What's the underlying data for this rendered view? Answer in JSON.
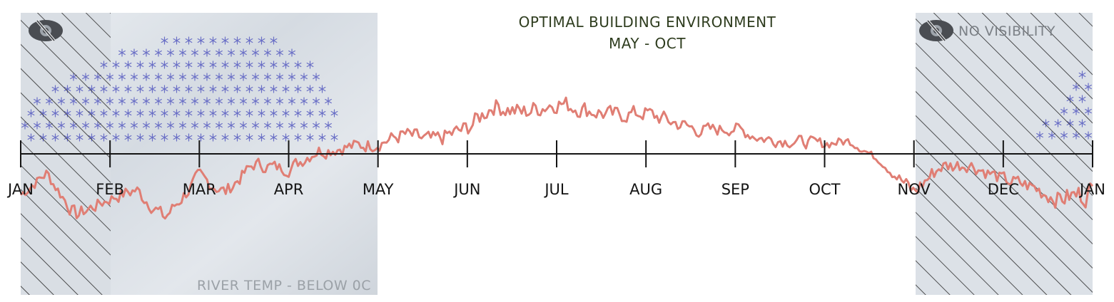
{
  "chart_data": {
    "type": "line",
    "title": "OPTIMAL BUILDING ENVIRONMENT",
    "subtitle": "MAY - OCT",
    "xlabel": "",
    "ylabel": "",
    "grid": false,
    "categories": [
      "JAN",
      "FEB",
      "MAR",
      "APR",
      "MAY",
      "JUN",
      "JUL",
      "AUG",
      "SEP",
      "OCT",
      "NOV",
      "DEC",
      "JAN"
    ],
    "ylim": [
      -10,
      10
    ],
    "annotations": {
      "frozen_label": "RIVER TEMP - BELOW 0C",
      "visibility_label": "NO VISIBILITY"
    },
    "series": [
      {
        "color": "#e07e74",
        "x": [
          "Jan 1",
          "Jan 10",
          "Jan 20",
          "Feb 1",
          "Feb 10",
          "Feb 20",
          "Mar 1",
          "Mar 10",
          "Mar 20",
          "Apr 1",
          "Apr 10",
          "Apr 20",
          "May 1",
          "May 10",
          "May 20",
          "Jun 1",
          "Jun 10",
          "Jun 20",
          "Jul 1",
          "Jul 10",
          "Jul 20",
          "Aug 1",
          "Aug 10",
          "Aug 20",
          "Sep 1",
          "Sep 10",
          "Sep 20",
          "Oct 1",
          "Oct 10",
          "Oct 20",
          "Nov 1",
          "Nov 10",
          "Nov 20",
          "Dec 1",
          "Dec 10",
          "Dec 20",
          "Dec 31"
        ],
        "values": [
          -3.2,
          -1.5,
          -4.8,
          -3.5,
          -2.8,
          -5.0,
          -1.8,
          -3.0,
          -0.8,
          -1.2,
          0.2,
          0.5,
          0.8,
          1.5,
          1.0,
          2.0,
          3.8,
          3.2,
          4.0,
          3.5,
          3.0,
          3.2,
          2.5,
          1.8,
          2.0,
          1.2,
          1.0,
          0.8,
          1.0,
          -0.5,
          -3.0,
          -1.0,
          -0.8,
          -2.0,
          -2.5,
          -3.5,
          -3.0
        ],
        "noise": [
          0.7,
          0.8,
          1.0,
          0.8,
          1.0,
          0.9,
          1.0,
          0.9,
          0.9,
          0.8,
          1.0,
          0.9,
          0.9,
          1.0,
          1.1,
          1.1,
          1.2,
          1.2,
          1.2,
          1.1,
          1.1,
          1.0,
          1.0,
          0.9,
          0.8,
          0.8,
          0.8,
          0.7,
          0.6,
          0.4,
          1.2,
          1.0,
          0.9,
          0.9,
          1.0,
          1.2,
          1.6
        ]
      }
    ],
    "shaded_ranges": [
      {
        "name": "frozen",
        "from": "Feb 1",
        "to": "May 1"
      },
      {
        "name": "no-visibility",
        "from": "Jan 1",
        "to": "Feb 1"
      },
      {
        "name": "no-visibility",
        "from": "Nov 1",
        "to": "Dec 31"
      }
    ],
    "colors": {
      "line": "#e07e74",
      "axis": "#141414",
      "frozen_fill": "#dde2e8",
      "hatch": "#2a2a2a",
      "snowflake": "#6a6fc6",
      "title": "#2f3d1f",
      "frozen_label": "#9ba1a7",
      "visibility_label": "#7c8187"
    },
    "icons": {
      "visibility": "eye-slash-icon",
      "snow": "snowflake-icon"
    }
  }
}
